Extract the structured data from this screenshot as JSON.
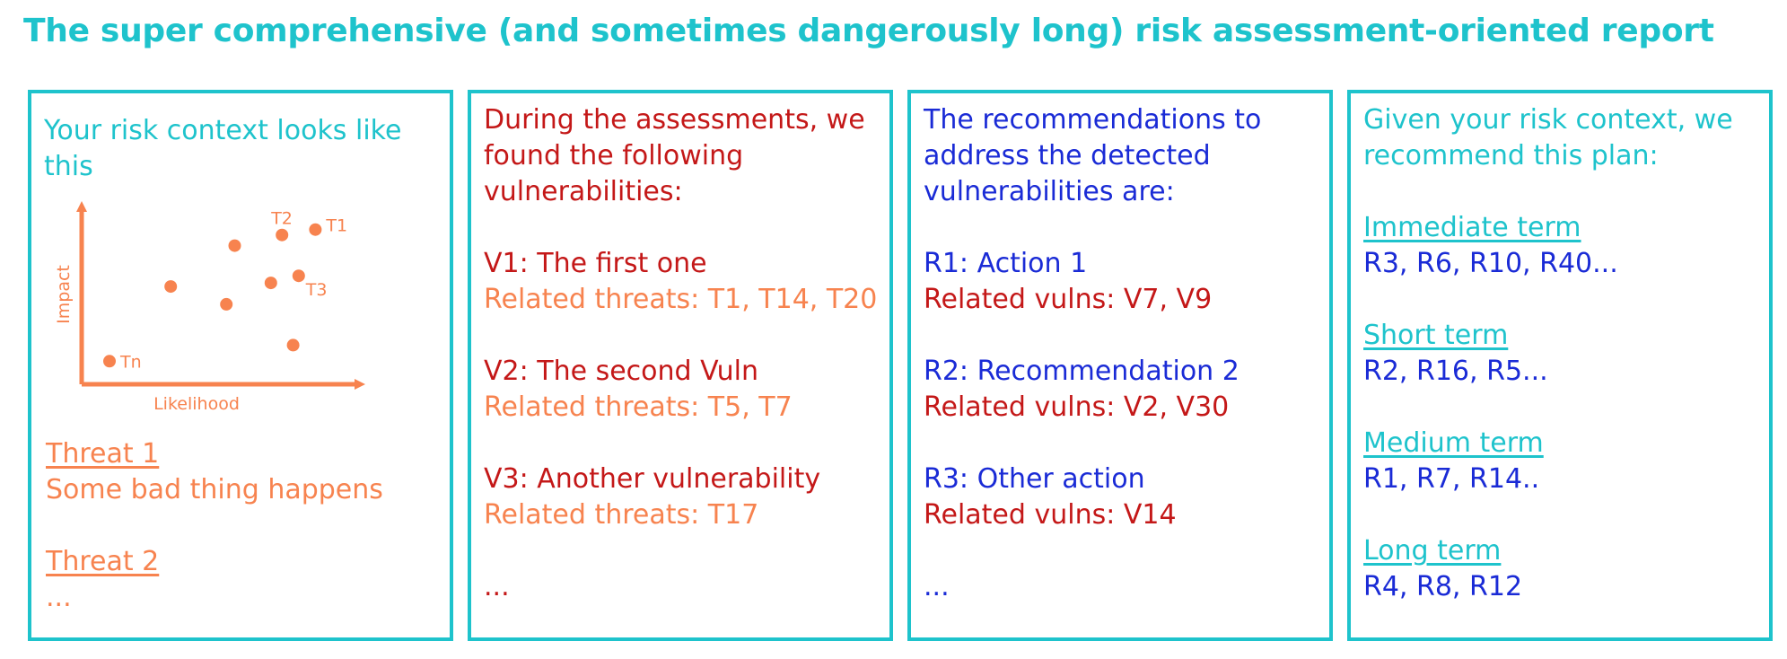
{
  "title": "The super comprehensive (and sometimes dangerously long) risk assessment-oriented report",
  "colors": {
    "cyan": "#1ec3cc",
    "orange": "#f7834f",
    "red": "#c41818",
    "blue": "#1a2bd6"
  },
  "panel1": {
    "heading": "Your risk context looks like this",
    "chart_data": {
      "type": "scatter",
      "xlabel": "Likelihood",
      "ylabel": "Impact",
      "grid": false,
      "points": [
        {
          "x": 0.1,
          "y": 0.13,
          "label": "Tn"
        },
        {
          "x": 0.32,
          "y": 0.55,
          "label": ""
        },
        {
          "x": 0.52,
          "y": 0.45,
          "label": ""
        },
        {
          "x": 0.55,
          "y": 0.78,
          "label": ""
        },
        {
          "x": 0.68,
          "y": 0.57,
          "label": ""
        },
        {
          "x": 0.72,
          "y": 0.84,
          "label": "T2"
        },
        {
          "x": 0.78,
          "y": 0.61,
          "label": "T3"
        },
        {
          "x": 0.84,
          "y": 0.87,
          "label": "T1"
        },
        {
          "x": 0.76,
          "y": 0.22,
          "label": ""
        }
      ]
    },
    "threats": [
      {
        "name": "Threat 1",
        "desc": "Some bad thing happens"
      },
      {
        "name": "Threat 2",
        "desc": ""
      }
    ],
    "ellipsis": "..."
  },
  "panel2": {
    "heading_lines": [
      "During the assessments, we",
      "found the following",
      "vulnerabilities:"
    ],
    "vulns": [
      {
        "title": "V1: The first one",
        "related": "Related threats: T1, T14, T20"
      },
      {
        "title": "V2: The second Vuln",
        "related": "Related threats: T5, T7"
      },
      {
        "title": "V3: Another vulnerability",
        "related": "Related threats: T17"
      }
    ],
    "ellipsis": "..."
  },
  "panel3": {
    "heading_lines": [
      "The recommendations to",
      "address the detected",
      "vulnerabilities are:"
    ],
    "recs": [
      {
        "title": "R1: Action 1",
        "related": "Related vulns: V7, V9"
      },
      {
        "title": "R2: Recommendation 2",
        "related": "Related vulns: V2, V30"
      },
      {
        "title": "R3: Other action",
        "related": "Related vulns: V14"
      }
    ],
    "ellipsis": "..."
  },
  "panel4": {
    "heading_lines": [
      "Given your risk context, we",
      "recommend this plan:"
    ],
    "plan": [
      {
        "term": "Immediate term",
        "items": "R3, R6, R10, R40..."
      },
      {
        "term": "Short term",
        "items": "R2, R16, R5..."
      },
      {
        "term": "Medium term",
        "items": "R1, R7, R14.."
      },
      {
        "term": "Long term",
        "items": "R4, R8, R12"
      }
    ]
  }
}
